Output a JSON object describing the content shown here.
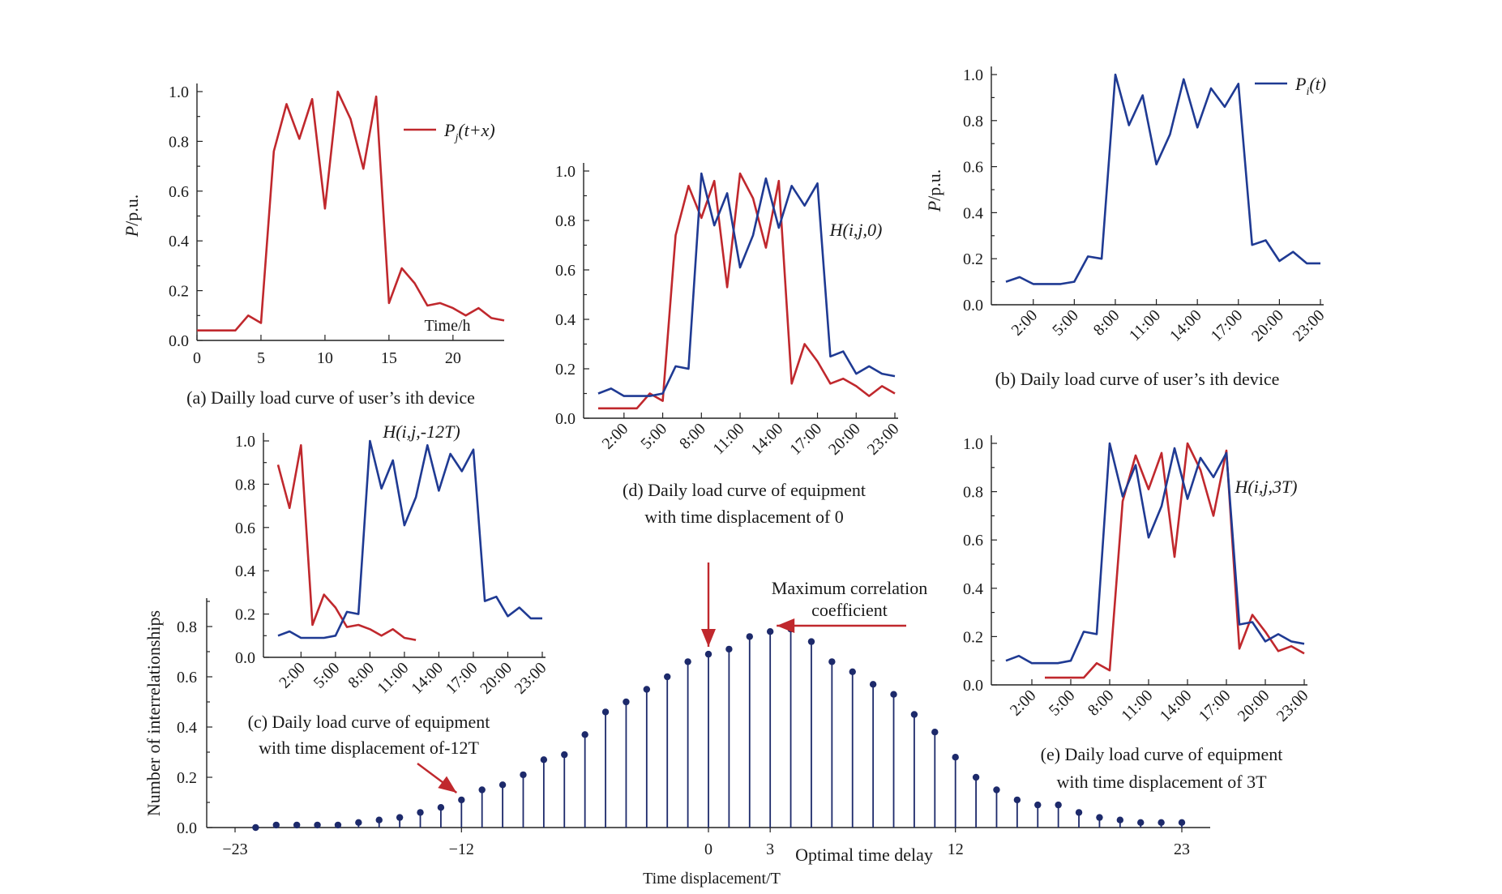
{
  "colors": {
    "red": "#c0282d",
    "blue": "#1f3a93",
    "navy": "#1d2a6b",
    "axis": "#222222"
  },
  "chart_data": [
    {
      "id": "a",
      "type": "line",
      "caption": "(a) Dailly load curve of user’s ith device",
      "ylabel": "P/p.u.",
      "xlabel": "Time/h",
      "xlim": [
        0,
        24
      ],
      "ylim": [
        0,
        1
      ],
      "xticks": [
        "0",
        "5",
        "10",
        "15",
        "20"
      ],
      "yticks": [
        "0.0",
        "0.2",
        "0.4",
        "0.6",
        "0.8",
        "1.0"
      ],
      "legend": "Pj(t+x)",
      "series": [
        {
          "name": "Pj(t+x)",
          "color": "red",
          "values": [
            0.04,
            0.04,
            0.04,
            0.04,
            0.1,
            0.07,
            0.76,
            0.95,
            0.81,
            0.97,
            0.53,
            1.0,
            0.89,
            0.69,
            0.98,
            0.15,
            0.29,
            0.23,
            0.14,
            0.15,
            0.13,
            0.1,
            0.13,
            0.09,
            0.08
          ]
        }
      ]
    },
    {
      "id": "b",
      "type": "line",
      "caption": "(b) Daily load curve of user’s ith device",
      "ylabel": "P/p.u.",
      "xlim": [
        0,
        24
      ],
      "ylim": [
        0,
        1
      ],
      "xticks": [
        "2:00",
        "5:00",
        "8:00",
        "11:00",
        "14:00",
        "17:00",
        "20:00",
        "23:00"
      ],
      "yticks": [
        "0.0",
        "0.2",
        "0.4",
        "0.6",
        "0.8",
        "1.0"
      ],
      "legend": "Pi(t)",
      "series": [
        {
          "name": "Pi(t)",
          "color": "blue",
          "values": [
            0.1,
            0.12,
            0.09,
            0.09,
            0.09,
            0.1,
            0.21,
            0.2,
            1.0,
            0.78,
            0.91,
            0.61,
            0.74,
            0.98,
            0.77,
            0.94,
            0.86,
            0.96,
            0.26,
            0.28,
            0.19,
            0.23,
            0.18,
            0.18
          ]
        }
      ]
    },
    {
      "id": "c",
      "type": "line",
      "caption": [
        "(c) Daily load curve of equipment",
        "with time displacement of-12T"
      ],
      "annotation": "H(i,j,-12T)",
      "xlim": [
        0,
        24
      ],
      "ylim": [
        0,
        1
      ],
      "xticks": [
        "2:00",
        "5:00",
        "8:00",
        "11:00",
        "14:00",
        "17:00",
        "20:00",
        "23:00"
      ],
      "yticks": [
        "0.0",
        "0.2",
        "0.4",
        "0.6",
        "0.8",
        "1.0"
      ],
      "series": [
        {
          "name": "red",
          "color": "red",
          "x0": 0,
          "values": [
            0.89,
            0.69,
            0.98,
            0.15,
            0.29,
            0.23,
            0.14,
            0.15,
            0.13,
            0.1,
            0.13,
            0.09,
            0.08
          ]
        },
        {
          "name": "blue",
          "color": "blue",
          "x0": 0,
          "values": [
            0.1,
            0.12,
            0.09,
            0.09,
            0.09,
            0.1,
            0.21,
            0.2,
            1.0,
            0.78,
            0.91,
            0.61,
            0.74,
            0.98,
            0.77,
            0.94,
            0.86,
            0.96,
            0.26,
            0.28,
            0.19,
            0.23,
            0.18,
            0.18
          ]
        }
      ]
    },
    {
      "id": "d",
      "type": "line",
      "caption": [
        "(d) Daily load curve of equipment",
        "with time displacement of 0"
      ],
      "annotation": "H(i,j,0)",
      "xlim": [
        0,
        24
      ],
      "ylim": [
        0,
        1
      ],
      "xticks": [
        "2:00",
        "5:00",
        "8:00",
        "11:00",
        "14:00",
        "17:00",
        "20:00",
        "23:00"
      ],
      "yticks": [
        "0.0",
        "0.2",
        "0.4",
        "0.6",
        "0.8",
        "1.0"
      ],
      "series": [
        {
          "name": "red",
          "color": "red",
          "x0": 0,
          "values": [
            0.04,
            0.04,
            0.04,
            0.04,
            0.1,
            0.07,
            0.74,
            0.94,
            0.81,
            0.96,
            0.53,
            0.99,
            0.89,
            0.69,
            0.96,
            0.14,
            0.3,
            0.23,
            0.14,
            0.16,
            0.13,
            0.09,
            0.13,
            0.1
          ]
        },
        {
          "name": "blue",
          "color": "blue",
          "x0": 0,
          "values": [
            0.1,
            0.12,
            0.09,
            0.09,
            0.09,
            0.1,
            0.21,
            0.2,
            0.99,
            0.78,
            0.91,
            0.61,
            0.74,
            0.97,
            0.77,
            0.94,
            0.86,
            0.95,
            0.25,
            0.27,
            0.18,
            0.21,
            0.18,
            0.17
          ]
        }
      ]
    },
    {
      "id": "e",
      "type": "line",
      "caption": [
        "(e) Daily load curve of equipment",
        "with time displacement of 3T"
      ],
      "annotation": "H(i,j,3T)",
      "xlim": [
        0,
        24
      ],
      "ylim": [
        0,
        1
      ],
      "xticks": [
        "2:00",
        "5:00",
        "8:00",
        "11:00",
        "14:00",
        "17:00",
        "20:00",
        "23:00"
      ],
      "yticks": [
        "0.0",
        "0.2",
        "0.4",
        "0.6",
        "0.8",
        "1.0"
      ],
      "series": [
        {
          "name": "red",
          "color": "red",
          "x0": 3,
          "values": [
            0.03,
            0.03,
            0.03,
            0.03,
            0.09,
            0.06,
            0.76,
            0.95,
            0.81,
            0.96,
            0.53,
            1.0,
            0.89,
            0.7,
            0.97,
            0.15,
            0.29,
            0.22,
            0.14,
            0.16,
            0.13
          ]
        },
        {
          "name": "blue",
          "color": "blue",
          "x0": 0,
          "values": [
            0.1,
            0.12,
            0.09,
            0.09,
            0.09,
            0.1,
            0.22,
            0.21,
            1.0,
            0.78,
            0.91,
            0.61,
            0.74,
            0.98,
            0.77,
            0.94,
            0.86,
            0.96,
            0.25,
            0.26,
            0.18,
            0.21,
            0.18,
            0.17
          ]
        }
      ]
    },
    {
      "id": "main",
      "type": "stem",
      "xlabel": "Time displacement/T",
      "ylabel": "Number of interrelationships",
      "xlim": [
        -23,
        23
      ],
      "ylim": [
        0,
        0.9
      ],
      "xticks": [
        "−23",
        "−12",
        "0",
        "3",
        "12",
        "23"
      ],
      "xtick_values": [
        -23,
        -12,
        0,
        3,
        12,
        23
      ],
      "yticks": [
        "0.0",
        "0.2",
        "0.4",
        "0.6",
        "0.8"
      ],
      "x": [
        -22,
        -21,
        -20,
        -19,
        -18,
        -17,
        -16,
        -15,
        -14,
        -13,
        -12,
        -11,
        -10,
        -9,
        -8,
        -7,
        -6,
        -5,
        -4,
        -3,
        -2,
        -1,
        0,
        1,
        2,
        3,
        4,
        5,
        6,
        7,
        8,
        9,
        10,
        11,
        12,
        13,
        14,
        15,
        16,
        17,
        18,
        19,
        20,
        21,
        22,
        23
      ],
      "values": [
        0.0,
        0.01,
        0.01,
        0.01,
        0.01,
        0.02,
        0.03,
        0.04,
        0.06,
        0.08,
        0.11,
        0.15,
        0.17,
        0.21,
        0.27,
        0.29,
        0.37,
        0.46,
        0.5,
        0.55,
        0.6,
        0.66,
        0.69,
        0.71,
        0.76,
        0.78,
        0.79,
        0.74,
        0.66,
        0.62,
        0.57,
        0.53,
        0.45,
        0.38,
        0.28,
        0.2,
        0.15,
        0.11,
        0.09,
        0.09,
        0.06,
        0.04,
        0.03,
        0.02,
        0.02,
        0.02
      ],
      "annotations": {
        "max": [
          "Maximum correlation",
          "coefficient"
        ],
        "optimal": "Optimal time delay"
      }
    }
  ]
}
